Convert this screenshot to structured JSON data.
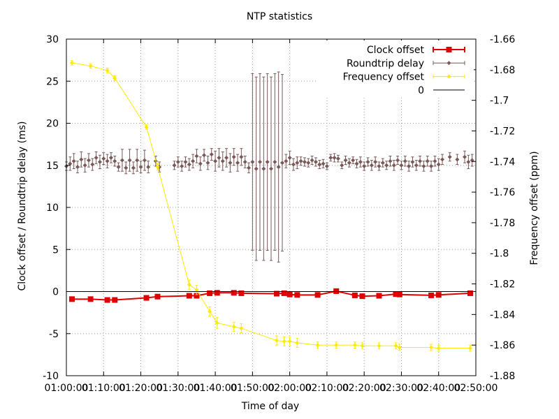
{
  "chart_data": {
    "type": "line",
    "title": "NTP statistics",
    "xlabel": "Time of day",
    "ylabel": "Clock offset / Roundtrip delay (ms)",
    "y2label": "Frequency offset (ppm)",
    "xlim": [
      "01:00:00",
      "02:50:00"
    ],
    "xticks": [
      "01:00:00",
      "01:10:00",
      "01:20:00",
      "01:30:00",
      "01:40:00",
      "01:50:00",
      "02:00:00",
      "02:10:00",
      "02:20:00",
      "02:30:00",
      "02:40:00",
      "02:50:00"
    ],
    "ylim": [
      -10,
      30
    ],
    "yticks": [
      "-10",
      "-5",
      "0",
      "5",
      "10",
      "15",
      "20",
      "25",
      "30"
    ],
    "y2lim": [
      -1.88,
      -1.66
    ],
    "y2ticks": [
      "-1.88",
      "-1.86",
      "-1.84",
      "-1.82",
      "-1.8",
      "-1.78",
      "-1.76",
      "-1.74",
      "-1.72",
      "-1.7",
      "-1.68",
      "-1.66"
    ],
    "grid": true,
    "legend_position": "top-right",
    "series": [
      {
        "name": "Clock offset",
        "axis": "left",
        "color": "#e00000",
        "marker": "square",
        "points": [
          [
            "01:01:30",
            -0.9
          ],
          [
            "01:06:30",
            -0.9
          ],
          [
            "01:11:00",
            -1.0
          ],
          [
            "01:13:00",
            -1.0
          ],
          [
            "01:21:30",
            -0.75
          ],
          [
            "01:24:30",
            -0.6
          ],
          [
            "01:33:00",
            -0.5
          ],
          [
            "01:35:00",
            -0.5
          ],
          [
            "01:38:30",
            -0.2
          ],
          [
            "01:40:30",
            -0.15
          ],
          [
            "01:45:00",
            -0.15
          ],
          [
            "01:47:00",
            -0.2
          ],
          [
            "01:56:30",
            -0.25
          ],
          [
            "01:58:30",
            -0.2
          ],
          [
            "02:00:00",
            -0.35
          ],
          [
            "02:02:00",
            -0.4
          ],
          [
            "02:07:30",
            -0.4
          ],
          [
            "02:12:30",
            0.05
          ],
          [
            "02:17:30",
            -0.45
          ],
          [
            "02:19:30",
            -0.55
          ],
          [
            "02:24:00",
            -0.5
          ],
          [
            "02:28:30",
            -0.3
          ],
          [
            "02:29:30",
            -0.35
          ],
          [
            "02:38:00",
            -0.45
          ],
          [
            "02:40:00",
            -0.4
          ],
          [
            "02:48:30",
            -0.2
          ]
        ]
      },
      {
        "name": "Roundtrip delay",
        "axis": "left",
        "color": "#7a5858",
        "marker": "diamond",
        "points": [
          [
            "01:00:00",
            14.9,
            0.5
          ],
          [
            "01:01:00",
            15.2,
            0.8
          ],
          [
            "01:02:00",
            15.5,
            0.9
          ],
          [
            "01:03:00",
            14.8,
            0.7
          ],
          [
            "01:04:00",
            15.7,
            0.9
          ],
          [
            "01:05:00",
            15.0,
            0.8
          ],
          [
            "01:06:00",
            15.6,
            0.8
          ],
          [
            "01:07:00",
            15.1,
            0.7
          ],
          [
            "01:08:00",
            15.9,
            0.7
          ],
          [
            "01:09:00",
            15.4,
            0.8
          ],
          [
            "01:10:00",
            15.8,
            0.7
          ],
          [
            "01:11:00",
            15.5,
            0.8
          ],
          [
            "01:12:00",
            15.9,
            0.6
          ],
          [
            "01:13:00",
            15.5,
            0.6
          ],
          [
            "01:14:00",
            14.8,
            0.5
          ],
          [
            "01:15:00",
            15.6,
            1.3
          ],
          [
            "01:16:00",
            14.7,
            0.7
          ],
          [
            "01:17:00",
            15.6,
            1.3
          ],
          [
            "01:18:00",
            14.7,
            0.7
          ],
          [
            "01:19:00",
            15.6,
            1.3
          ],
          [
            "01:20:00",
            14.8,
            0.7
          ],
          [
            "01:21:00",
            15.6,
            1.2
          ],
          [
            "01:22:00",
            14.8,
            0.7
          ],
          [
            "01:24:00",
            15.5,
            0.6
          ],
          [
            "01:25:00",
            14.8,
            0.6
          ],
          [
            "01:29:00",
            15.0,
            0.5
          ],
          [
            "01:30:00",
            15.4,
            0.6
          ],
          [
            "01:31:00",
            14.9,
            0.6
          ],
          [
            "01:32:00",
            15.4,
            0.6
          ],
          [
            "01:33:00",
            15.1,
            0.7
          ],
          [
            "01:34:00",
            15.5,
            0.8
          ],
          [
            "01:35:00",
            16.1,
            0.8
          ],
          [
            "01:36:00",
            15.2,
            0.8
          ],
          [
            "01:37:00",
            16.2,
            0.7
          ],
          [
            "01:38:00",
            15.3,
            0.8
          ],
          [
            "01:39:00",
            16.3,
            0.7
          ],
          [
            "01:40:00",
            15.5,
            1.2
          ],
          [
            "01:41:00",
            15.9,
            1.1
          ],
          [
            "01:42:00",
            15.5,
            1.1
          ],
          [
            "01:43:00",
            15.9,
            1.1
          ],
          [
            "01:44:00",
            15.3,
            1.1
          ],
          [
            "01:45:00",
            16.0,
            1.0
          ],
          [
            "01:46:00",
            15.3,
            1.0
          ],
          [
            "01:47:00",
            16.0,
            1.0
          ],
          [
            "01:48:00",
            15.4,
            0.7
          ],
          [
            "01:49:00",
            14.7,
            0.6
          ],
          [
            "01:50:00",
            15.4,
            10.5
          ],
          [
            "01:51:00",
            14.6,
            10.9
          ],
          [
            "01:52:00",
            15.4,
            10.5
          ],
          [
            "01:53:00",
            14.6,
            10.9
          ],
          [
            "01:54:00",
            15.4,
            10.5
          ],
          [
            "01:55:00",
            14.6,
            10.9
          ],
          [
            "01:56:00",
            15.4,
            10.5
          ],
          [
            "01:57:00",
            14.8,
            11.3
          ],
          [
            "01:58:00",
            15.3,
            10.5
          ],
          [
            "01:59:00",
            15.5,
            0.8
          ],
          [
            "02:00:00",
            15.9,
            0.8
          ],
          [
            "02:01:00",
            15.1,
            0.7
          ],
          [
            "02:02:00",
            15.3,
            0.7
          ],
          [
            "02:03:00",
            15.5,
            0.5
          ],
          [
            "02:04:00",
            15.4,
            0.5
          ],
          [
            "02:05:00",
            15.3,
            0.5
          ],
          [
            "02:06:00",
            15.6,
            0.5
          ],
          [
            "02:07:00",
            15.4,
            0.5
          ],
          [
            "02:08:00",
            15.1,
            0.5
          ],
          [
            "02:09:00",
            15.2,
            0.5
          ],
          [
            "02:10:00",
            14.9,
            0.4
          ],
          [
            "02:11:00",
            15.9,
            0.4
          ],
          [
            "02:12:00",
            15.9,
            0.5
          ],
          [
            "02:13:00",
            15.8,
            0.4
          ],
          [
            "02:14:00",
            15.0,
            0.4
          ],
          [
            "02:15:00",
            15.6,
            0.5
          ],
          [
            "02:16:00",
            15.3,
            0.5
          ],
          [
            "02:17:00",
            15.6,
            0.4
          ],
          [
            "02:18:00",
            15.2,
            0.5
          ],
          [
            "02:19:00",
            15.4,
            0.6
          ],
          [
            "02:20:00",
            14.9,
            0.5
          ],
          [
            "02:21:00",
            15.4,
            0.5
          ],
          [
            "02:22:00",
            15.0,
            0.6
          ],
          [
            "02:23:00",
            15.4,
            0.6
          ],
          [
            "02:24:00",
            14.9,
            0.5
          ],
          [
            "02:25:00",
            15.3,
            0.5
          ],
          [
            "02:26:00",
            15.0,
            0.5
          ],
          [
            "02:27:00",
            15.5,
            0.6
          ],
          [
            "02:28:00",
            15.0,
            0.6
          ],
          [
            "02:29:00",
            15.6,
            0.5
          ],
          [
            "02:30:00",
            15.0,
            0.5
          ],
          [
            "02:31:00",
            15.5,
            0.6
          ],
          [
            "02:32:00",
            14.9,
            0.6
          ],
          [
            "02:33:00",
            15.4,
            0.6
          ],
          [
            "02:34:00",
            15.0,
            0.6
          ],
          [
            "02:35:00",
            15.5,
            0.6
          ],
          [
            "02:36:00",
            14.9,
            0.6
          ],
          [
            "02:37:00",
            15.5,
            0.6
          ],
          [
            "02:38:00",
            14.9,
            0.6
          ],
          [
            "02:39:00",
            15.5,
            0.6
          ],
          [
            "02:40:00",
            15.1,
            0.7
          ],
          [
            "02:41:00",
            15.7,
            0.6
          ],
          [
            "02:43:00",
            16.0,
            0.5
          ],
          [
            "02:45:00",
            15.7,
            0.6
          ],
          [
            "02:47:00",
            16.0,
            0.7
          ],
          [
            "02:48:00",
            15.4,
            0.8
          ],
          [
            "02:49:00",
            15.6,
            0.7
          ]
        ]
      },
      {
        "name": "Frequency offset",
        "axis": "right",
        "color": "#ffea00",
        "marker": "diamond",
        "points": [
          [
            "01:01:30",
            -1.6755,
            0.0015
          ],
          [
            "01:06:30",
            -1.6775,
            0.0015
          ],
          [
            "01:11:00",
            -1.6805,
            0.0015
          ],
          [
            "01:13:00",
            -1.6855,
            0.0015
          ],
          [
            "01:21:30",
            -1.7175,
            0.0015
          ],
          [
            "01:24:30",
            -1.7435,
            0.002
          ],
          [
            "01:33:00",
            -1.8205,
            0.003
          ],
          [
            "01:35:00",
            -1.824,
            0.003
          ],
          [
            "01:38:30",
            -1.838,
            0.003
          ],
          [
            "01:40:30",
            -1.8455,
            0.0035
          ],
          [
            "01:45:00",
            -1.848,
            0.003
          ],
          [
            "01:47:00",
            -1.849,
            0.003
          ],
          [
            "01:56:30",
            -1.857,
            0.003
          ],
          [
            "01:58:30",
            -1.8575,
            0.003
          ],
          [
            "02:00:00",
            -1.8575,
            0.003
          ],
          [
            "02:02:00",
            -1.8585,
            0.003
          ],
          [
            "02:07:30",
            -1.86,
            0.002
          ],
          [
            "02:12:30",
            -1.86,
            0.002
          ],
          [
            "02:17:30",
            -1.86,
            0.002
          ],
          [
            "02:19:30",
            -1.8605,
            0.002
          ],
          [
            "02:24:00",
            -1.8605,
            0.002
          ],
          [
            "02:28:30",
            -1.8605,
            0.002
          ],
          [
            "02:29:30",
            -1.8615,
            0.002
          ],
          [
            "02:38:00",
            -1.8615,
            0.002
          ],
          [
            "02:40:00",
            -1.862,
            0.002
          ],
          [
            "02:48:30",
            -1.862,
            0.002
          ]
        ]
      },
      {
        "name": "0",
        "axis": "left",
        "color": "#000000",
        "marker": "none",
        "constant": 0
      }
    ]
  }
}
